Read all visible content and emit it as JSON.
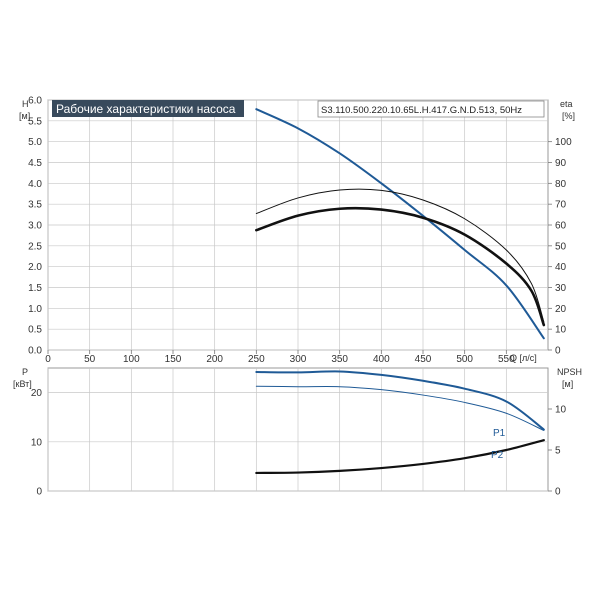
{
  "header": {
    "title": "Рабочие характеристики насоса",
    "model": "S3.110.500.220.10.65L.H.417.G.N.D.513, 50Hz"
  },
  "colors": {
    "accent": "#1f5a96",
    "curve_black": "#111111",
    "grid": "#c8c8c8",
    "title_bg": "#384a5c"
  },
  "chart_data": [
    {
      "type": "line",
      "title": "Рабочие характеристики насоса",
      "xlabel": "Q [л/с]",
      "ylabel": "H",
      "ylabel_unit": "[м]",
      "y2label": "eta",
      "y2label_unit": "[%]",
      "xlim": [
        0,
        600
      ],
      "ylim": [
        0,
        6.0
      ],
      "y2lim": [
        0,
        120
      ],
      "x_ticks": [
        0,
        50,
        100,
        150,
        200,
        250,
        300,
        350,
        400,
        450,
        500,
        550
      ],
      "y_ticks": [
        "0.0",
        "0.5",
        "1.0",
        "1.5",
        "2.0",
        "2.5",
        "3.0",
        "3.5",
        "4.0",
        "4.5",
        "5.0",
        "5.5",
        "6.0"
      ],
      "y2_ticks": [
        "0",
        "10",
        "20",
        "30",
        "40",
        "50",
        "60",
        "70",
        "80",
        "90",
        "100"
      ],
      "grid": true,
      "series": [
        {
          "name": "H",
          "axis": "left",
          "color": "#1f5a96",
          "x": [
            250,
            300,
            350,
            400,
            450,
            500,
            550,
            595
          ],
          "y": [
            5.78,
            5.32,
            4.72,
            4.0,
            3.22,
            2.4,
            1.55,
            0.28
          ]
        },
        {
          "name": "eta",
          "axis": "right",
          "color": "#111111",
          "x": [
            250,
            300,
            350,
            400,
            450,
            500,
            550,
            580,
            595
          ],
          "y": [
            57.5,
            64.5,
            67.8,
            67.4,
            63.5,
            55.4,
            41.5,
            28.5,
            12.0
          ]
        },
        {
          "name": "eta",
          "axis": "right",
          "color": "#111111",
          "x": [
            250,
            300,
            350,
            400,
            450,
            500,
            550,
            580,
            595
          ],
          "y": [
            65.5,
            73.0,
            76.8,
            76.6,
            72.0,
            63.0,
            48.0,
            32.0,
            13.5
          ]
        }
      ]
    },
    {
      "type": "line",
      "ylabel": "P",
      "ylabel_unit": "[кВт]",
      "y2label": "NPSH",
      "y2label_unit": "[м]",
      "xlim": [
        0,
        600
      ],
      "ylim": [
        0,
        25
      ],
      "y2lim": [
        0,
        15
      ],
      "y_ticks": [
        "0",
        "10",
        "20"
      ],
      "y2_ticks": [
        "0",
        "5",
        "10"
      ],
      "grid": true,
      "series": [
        {
          "name": "P1",
          "axis": "left",
          "color": "#1f5a96",
          "x": [
            250,
            300,
            350,
            400,
            450,
            500,
            550,
            595
          ],
          "y": [
            24.2,
            24.1,
            24.3,
            23.6,
            22.4,
            20.8,
            18.2,
            12.5
          ]
        },
        {
          "name": "P2",
          "axis": "left",
          "color": "#1f5a96",
          "x": [
            250,
            300,
            350,
            400,
            450,
            500,
            550,
            595
          ],
          "y": [
            21.3,
            21.2,
            21.2,
            20.6,
            19.5,
            18.0,
            15.8,
            12.3
          ]
        },
        {
          "name": "NPSH",
          "axis": "right",
          "color": "#111111",
          "x": [
            250,
            300,
            350,
            400,
            450,
            500,
            550,
            595
          ],
          "y": [
            2.2,
            2.25,
            2.45,
            2.8,
            3.3,
            4.0,
            5.0,
            6.2
          ]
        }
      ]
    }
  ]
}
